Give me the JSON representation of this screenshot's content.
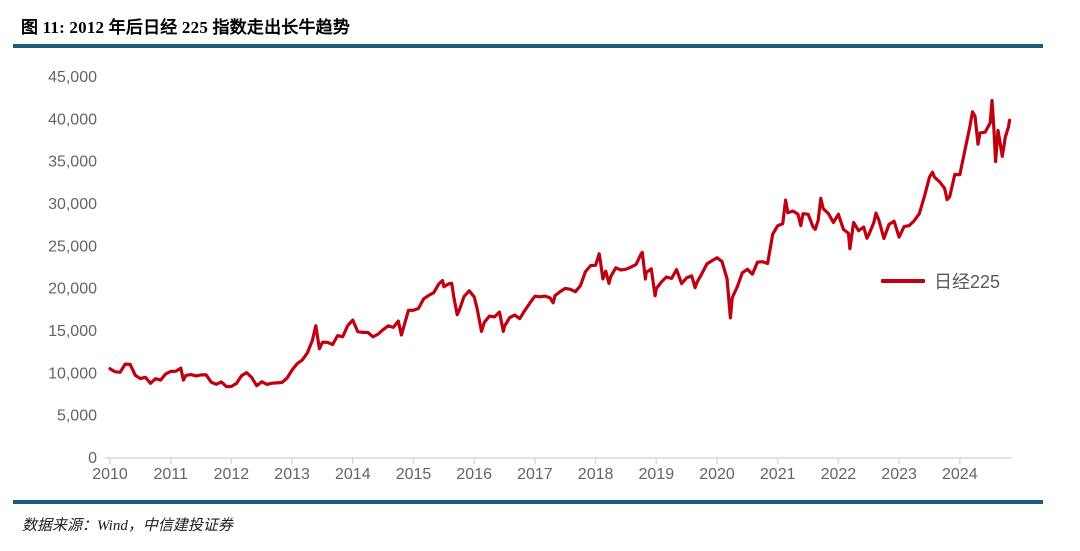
{
  "figure": {
    "title": "图 11: 2012 年后日经 225 指数走出长牛趋势",
    "source": "数据来源：Wind，中信建投证券",
    "accent_color": "#1E5C7C"
  },
  "chart_data": {
    "type": "line",
    "title": "图 11: 2012 年后日经 225 指数走出长牛趋势",
    "xlabel": "",
    "ylabel": "",
    "grid": false,
    "xlim": [
      2009.9,
      2024.9
    ],
    "ylim": [
      0,
      45000
    ],
    "legend_position": "middle-right",
    "axis_color": "#D9D9D9",
    "tick_label_color": "#646464",
    "x_ticks": [
      2010,
      2011,
      2012,
      2013,
      2014,
      2015,
      2016,
      2017,
      2018,
      2019,
      2020,
      2021,
      2022,
      2023,
      2024
    ],
    "y_ticks": [
      {
        "value": 0,
        "label": "0"
      },
      {
        "value": 5000,
        "label": "5,000"
      },
      {
        "value": 10000,
        "label": "10,000"
      },
      {
        "value": 15000,
        "label": "15,000"
      },
      {
        "value": 20000,
        "label": "20,000"
      },
      {
        "value": 25000,
        "label": "25,000"
      },
      {
        "value": 30000,
        "label": "30,000"
      },
      {
        "value": 35000,
        "label": "35,000"
      },
      {
        "value": 40000,
        "label": "40,000"
      },
      {
        "value": 45000,
        "label": "45,000"
      }
    ],
    "series": [
      {
        "name": "日经225",
        "color": "#C00010",
        "points": [
          [
            2010.0,
            10546
          ],
          [
            2010.083,
            10198
          ],
          [
            2010.167,
            10126
          ],
          [
            2010.25,
            11090
          ],
          [
            2010.333,
            11057
          ],
          [
            2010.417,
            9769
          ],
          [
            2010.5,
            9383
          ],
          [
            2010.583,
            9537
          ],
          [
            2010.667,
            8824
          ],
          [
            2010.75,
            9369
          ],
          [
            2010.833,
            9202
          ],
          [
            2010.917,
            9937
          ],
          [
            2011.0,
            10229
          ],
          [
            2011.083,
            10237
          ],
          [
            2011.167,
            10624
          ],
          [
            2011.21,
            9207
          ],
          [
            2011.25,
            9755
          ],
          [
            2011.333,
            9850
          ],
          [
            2011.417,
            9694
          ],
          [
            2011.5,
            9816
          ],
          [
            2011.583,
            9833
          ],
          [
            2011.667,
            8955
          ],
          [
            2011.75,
            8700
          ],
          [
            2011.833,
            8988
          ],
          [
            2011.917,
            8435
          ],
          [
            2012.0,
            8455
          ],
          [
            2012.083,
            8803
          ],
          [
            2012.167,
            9723
          ],
          [
            2012.25,
            10084
          ],
          [
            2012.333,
            9521
          ],
          [
            2012.417,
            8543
          ],
          [
            2012.5,
            9007
          ],
          [
            2012.583,
            8695
          ],
          [
            2012.667,
            8840
          ],
          [
            2012.75,
            8870
          ],
          [
            2012.833,
            8928
          ],
          [
            2012.917,
            9446
          ],
          [
            2013.0,
            10395
          ],
          [
            2013.083,
            11139
          ],
          [
            2013.167,
            11559
          ],
          [
            2013.25,
            12398
          ],
          [
            2013.333,
            13861
          ],
          [
            2013.39,
            15627
          ],
          [
            2013.45,
            12904
          ],
          [
            2013.5,
            13677
          ],
          [
            2013.583,
            13668
          ],
          [
            2013.667,
            13389
          ],
          [
            2013.75,
            14456
          ],
          [
            2013.833,
            14328
          ],
          [
            2013.917,
            15662
          ],
          [
            2014.0,
            16291
          ],
          [
            2014.083,
            14914
          ],
          [
            2014.167,
            14841
          ],
          [
            2014.25,
            14828
          ],
          [
            2014.333,
            14304
          ],
          [
            2014.417,
            14632
          ],
          [
            2014.5,
            15162
          ],
          [
            2014.583,
            15621
          ],
          [
            2014.667,
            15425
          ],
          [
            2014.75,
            16174
          ],
          [
            2014.8,
            14532
          ],
          [
            2014.917,
            17460
          ],
          [
            2015.0,
            17451
          ],
          [
            2015.083,
            17674
          ],
          [
            2015.167,
            18798
          ],
          [
            2015.25,
            19207
          ],
          [
            2015.333,
            19520
          ],
          [
            2015.417,
            20563
          ],
          [
            2015.48,
            20952
          ],
          [
            2015.5,
            20236
          ],
          [
            2015.583,
            20585
          ],
          [
            2015.63,
            20620
          ],
          [
            2015.667,
            18890
          ],
          [
            2015.72,
            16930
          ],
          [
            2015.75,
            17388
          ],
          [
            2015.833,
            19083
          ],
          [
            2015.917,
            19747
          ],
          [
            2016.0,
            19034
          ],
          [
            2016.05,
            17601
          ],
          [
            2016.12,
            14953
          ],
          [
            2016.167,
            16027
          ],
          [
            2016.25,
            16759
          ],
          [
            2016.333,
            16666
          ],
          [
            2016.417,
            17235
          ],
          [
            2016.48,
            14952
          ],
          [
            2016.5,
            15576
          ],
          [
            2016.583,
            16569
          ],
          [
            2016.667,
            16887
          ],
          [
            2016.75,
            16450
          ],
          [
            2016.833,
            17425
          ],
          [
            2016.917,
            18308
          ],
          [
            2017.0,
            19114
          ],
          [
            2017.083,
            19041
          ],
          [
            2017.167,
            19119
          ],
          [
            2017.25,
            18909
          ],
          [
            2017.3,
            18336
          ],
          [
            2017.333,
            19197
          ],
          [
            2017.417,
            19651
          ],
          [
            2017.5,
            20033
          ],
          [
            2017.583,
            19925
          ],
          [
            2017.667,
            19646
          ],
          [
            2017.75,
            20356
          ],
          [
            2017.833,
            22012
          ],
          [
            2017.917,
            22725
          ],
          [
            2018.0,
            22765
          ],
          [
            2018.06,
            24124
          ],
          [
            2018.083,
            23098
          ],
          [
            2018.12,
            21154
          ],
          [
            2018.167,
            22068
          ],
          [
            2018.22,
            20618
          ],
          [
            2018.25,
            21454
          ],
          [
            2018.333,
            22468
          ],
          [
            2018.417,
            22202
          ],
          [
            2018.5,
            22305
          ],
          [
            2018.583,
            22554
          ],
          [
            2018.667,
            22865
          ],
          [
            2018.75,
            24120
          ],
          [
            2018.77,
            24271
          ],
          [
            2018.82,
            21149
          ],
          [
            2018.833,
            21920
          ],
          [
            2018.917,
            22351
          ],
          [
            2018.98,
            19156
          ],
          [
            2019.0,
            20015
          ],
          [
            2019.083,
            20773
          ],
          [
            2019.167,
            21385
          ],
          [
            2019.25,
            21206
          ],
          [
            2019.333,
            22259
          ],
          [
            2019.417,
            20601
          ],
          [
            2019.5,
            21276
          ],
          [
            2019.583,
            21522
          ],
          [
            2019.64,
            20110
          ],
          [
            2019.667,
            20704
          ],
          [
            2019.75,
            21756
          ],
          [
            2019.833,
            22927
          ],
          [
            2019.917,
            23294
          ],
          [
            2020.0,
            23657
          ],
          [
            2020.083,
            23205
          ],
          [
            2020.167,
            21143
          ],
          [
            2020.22,
            16553
          ],
          [
            2020.25,
            18917
          ],
          [
            2020.333,
            20194
          ],
          [
            2020.417,
            21878
          ],
          [
            2020.5,
            22288
          ],
          [
            2020.583,
            21710
          ],
          [
            2020.667,
            23140
          ],
          [
            2020.75,
            23185
          ],
          [
            2020.833,
            22977
          ],
          [
            2020.917,
            26434
          ],
          [
            2021.0,
            27444
          ],
          [
            2021.083,
            27663
          ],
          [
            2021.13,
            30468
          ],
          [
            2021.167,
            28966
          ],
          [
            2021.25,
            29179
          ],
          [
            2021.333,
            28813
          ],
          [
            2021.38,
            27448
          ],
          [
            2021.417,
            28860
          ],
          [
            2021.5,
            28792
          ],
          [
            2021.583,
            27284
          ],
          [
            2021.62,
            27013
          ],
          [
            2021.667,
            28090
          ],
          [
            2021.71,
            30670
          ],
          [
            2021.75,
            29453
          ],
          [
            2021.833,
            28893
          ],
          [
            2021.917,
            27822
          ],
          [
            2022.0,
            28792
          ],
          [
            2022.083,
            27002
          ],
          [
            2022.167,
            26527
          ],
          [
            2022.19,
            24718
          ],
          [
            2022.25,
            27821
          ],
          [
            2022.333,
            26848
          ],
          [
            2022.417,
            27280
          ],
          [
            2022.47,
            25963
          ],
          [
            2022.5,
            26393
          ],
          [
            2022.583,
            27802
          ],
          [
            2022.62,
            28930
          ],
          [
            2022.667,
            28092
          ],
          [
            2022.75,
            25937
          ],
          [
            2022.833,
            27587
          ],
          [
            2022.917,
            27969
          ],
          [
            2023.0,
            26095
          ],
          [
            2023.083,
            27327
          ],
          [
            2023.167,
            27446
          ],
          [
            2023.25,
            28041
          ],
          [
            2023.333,
            28856
          ],
          [
            2023.417,
            30888
          ],
          [
            2023.5,
            33189
          ],
          [
            2023.55,
            33753
          ],
          [
            2023.583,
            33172
          ],
          [
            2023.667,
            32619
          ],
          [
            2023.75,
            31858
          ],
          [
            2023.79,
            30527
          ],
          [
            2023.833,
            30859
          ],
          [
            2023.917,
            33487
          ],
          [
            2024.0,
            33464
          ],
          [
            2024.083,
            36287
          ],
          [
            2024.167,
            39166
          ],
          [
            2024.21,
            40888
          ],
          [
            2024.25,
            40369
          ],
          [
            2024.3,
            37068
          ],
          [
            2024.333,
            38406
          ],
          [
            2024.417,
            38488
          ],
          [
            2024.5,
            39583
          ],
          [
            2024.53,
            42224
          ],
          [
            2024.56,
            39102
          ],
          [
            2024.59,
            35025
          ],
          [
            2024.63,
            38700
          ],
          [
            2024.7,
            35620
          ],
          [
            2024.75,
            37920
          ],
          [
            2024.8,
            39081
          ],
          [
            2024.82,
            39895
          ]
        ]
      }
    ]
  }
}
